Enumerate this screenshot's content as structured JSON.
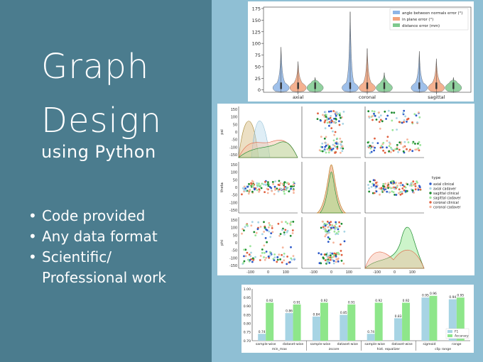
{
  "left": {
    "title_line1": "Graph",
    "title_line2": "Design",
    "subtitle": "using Python",
    "bullets": [
      "Code provided",
      "Any data format",
      " Scientific/",
      "Professional work"
    ]
  },
  "colors": {
    "left_panel": "#4b7c8e",
    "background": "#8fbfd4",
    "blue": "#8eb5e6",
    "orange": "#f2a37c",
    "green": "#7ec98e",
    "lightblue": "#a7d4e4",
    "lightgreen": "#8ee68a"
  },
  "chart_data": [
    {
      "type": "violin",
      "categories": [
        "axial",
        "coronal",
        "sagittal"
      ],
      "series": [
        {
          "name": "angle between normals error (°)",
          "max": [
            92,
            168,
            83
          ]
        },
        {
          "name": "in plane error (°)",
          "max": [
            61,
            89,
            67
          ]
        },
        {
          "name": "distance error (mm)",
          "max": [
            27,
            37,
            27
          ]
        }
      ],
      "yticks": [
        0,
        25,
        50,
        75,
        100,
        125,
        150,
        175
      ],
      "ylim": [
        -5,
        178
      ],
      "legend": "top-right"
    },
    {
      "type": "scatter",
      "variables": [
        "psi",
        "theta",
        "phi"
      ],
      "ticks": [
        150,
        100,
        50,
        0,
        -50,
        -100,
        -150
      ],
      "xticks": [
        -100,
        0,
        100
      ],
      "legend_title": "type",
      "legend": [
        "axial clinical",
        "axial cadaver",
        "sagittal clinical",
        "sagittal cadaver",
        "coronal clinical",
        "coronal cadaver"
      ]
    },
    {
      "type": "bar",
      "categories": [
        "sample-wise",
        "dataset-wise",
        "sample-wise",
        "dataset-wise",
        "sample-wise",
        "dataset-wise",
        "sigmoid",
        "range"
      ],
      "groups": [
        "min_max",
        "zscore",
        "hist. equalizer",
        "clip range"
      ],
      "series": [
        {
          "name": "F1",
          "values": [
            0.74,
            0.86,
            0.84,
            0.85,
            0.74,
            0.83,
            0.95,
            0.94
          ]
        },
        {
          "name": "Accuracy",
          "values": [
            0.92,
            0.91,
            0.92,
            0.91,
            0.92,
            0.92,
            0.96,
            0.95
          ]
        }
      ],
      "yticks": [
        0.7,
        0.75,
        0.8,
        0.85,
        0.9,
        0.95,
        1.0
      ],
      "ylim": [
        0.7,
        1.0
      ],
      "legend": "bottom-right"
    }
  ]
}
